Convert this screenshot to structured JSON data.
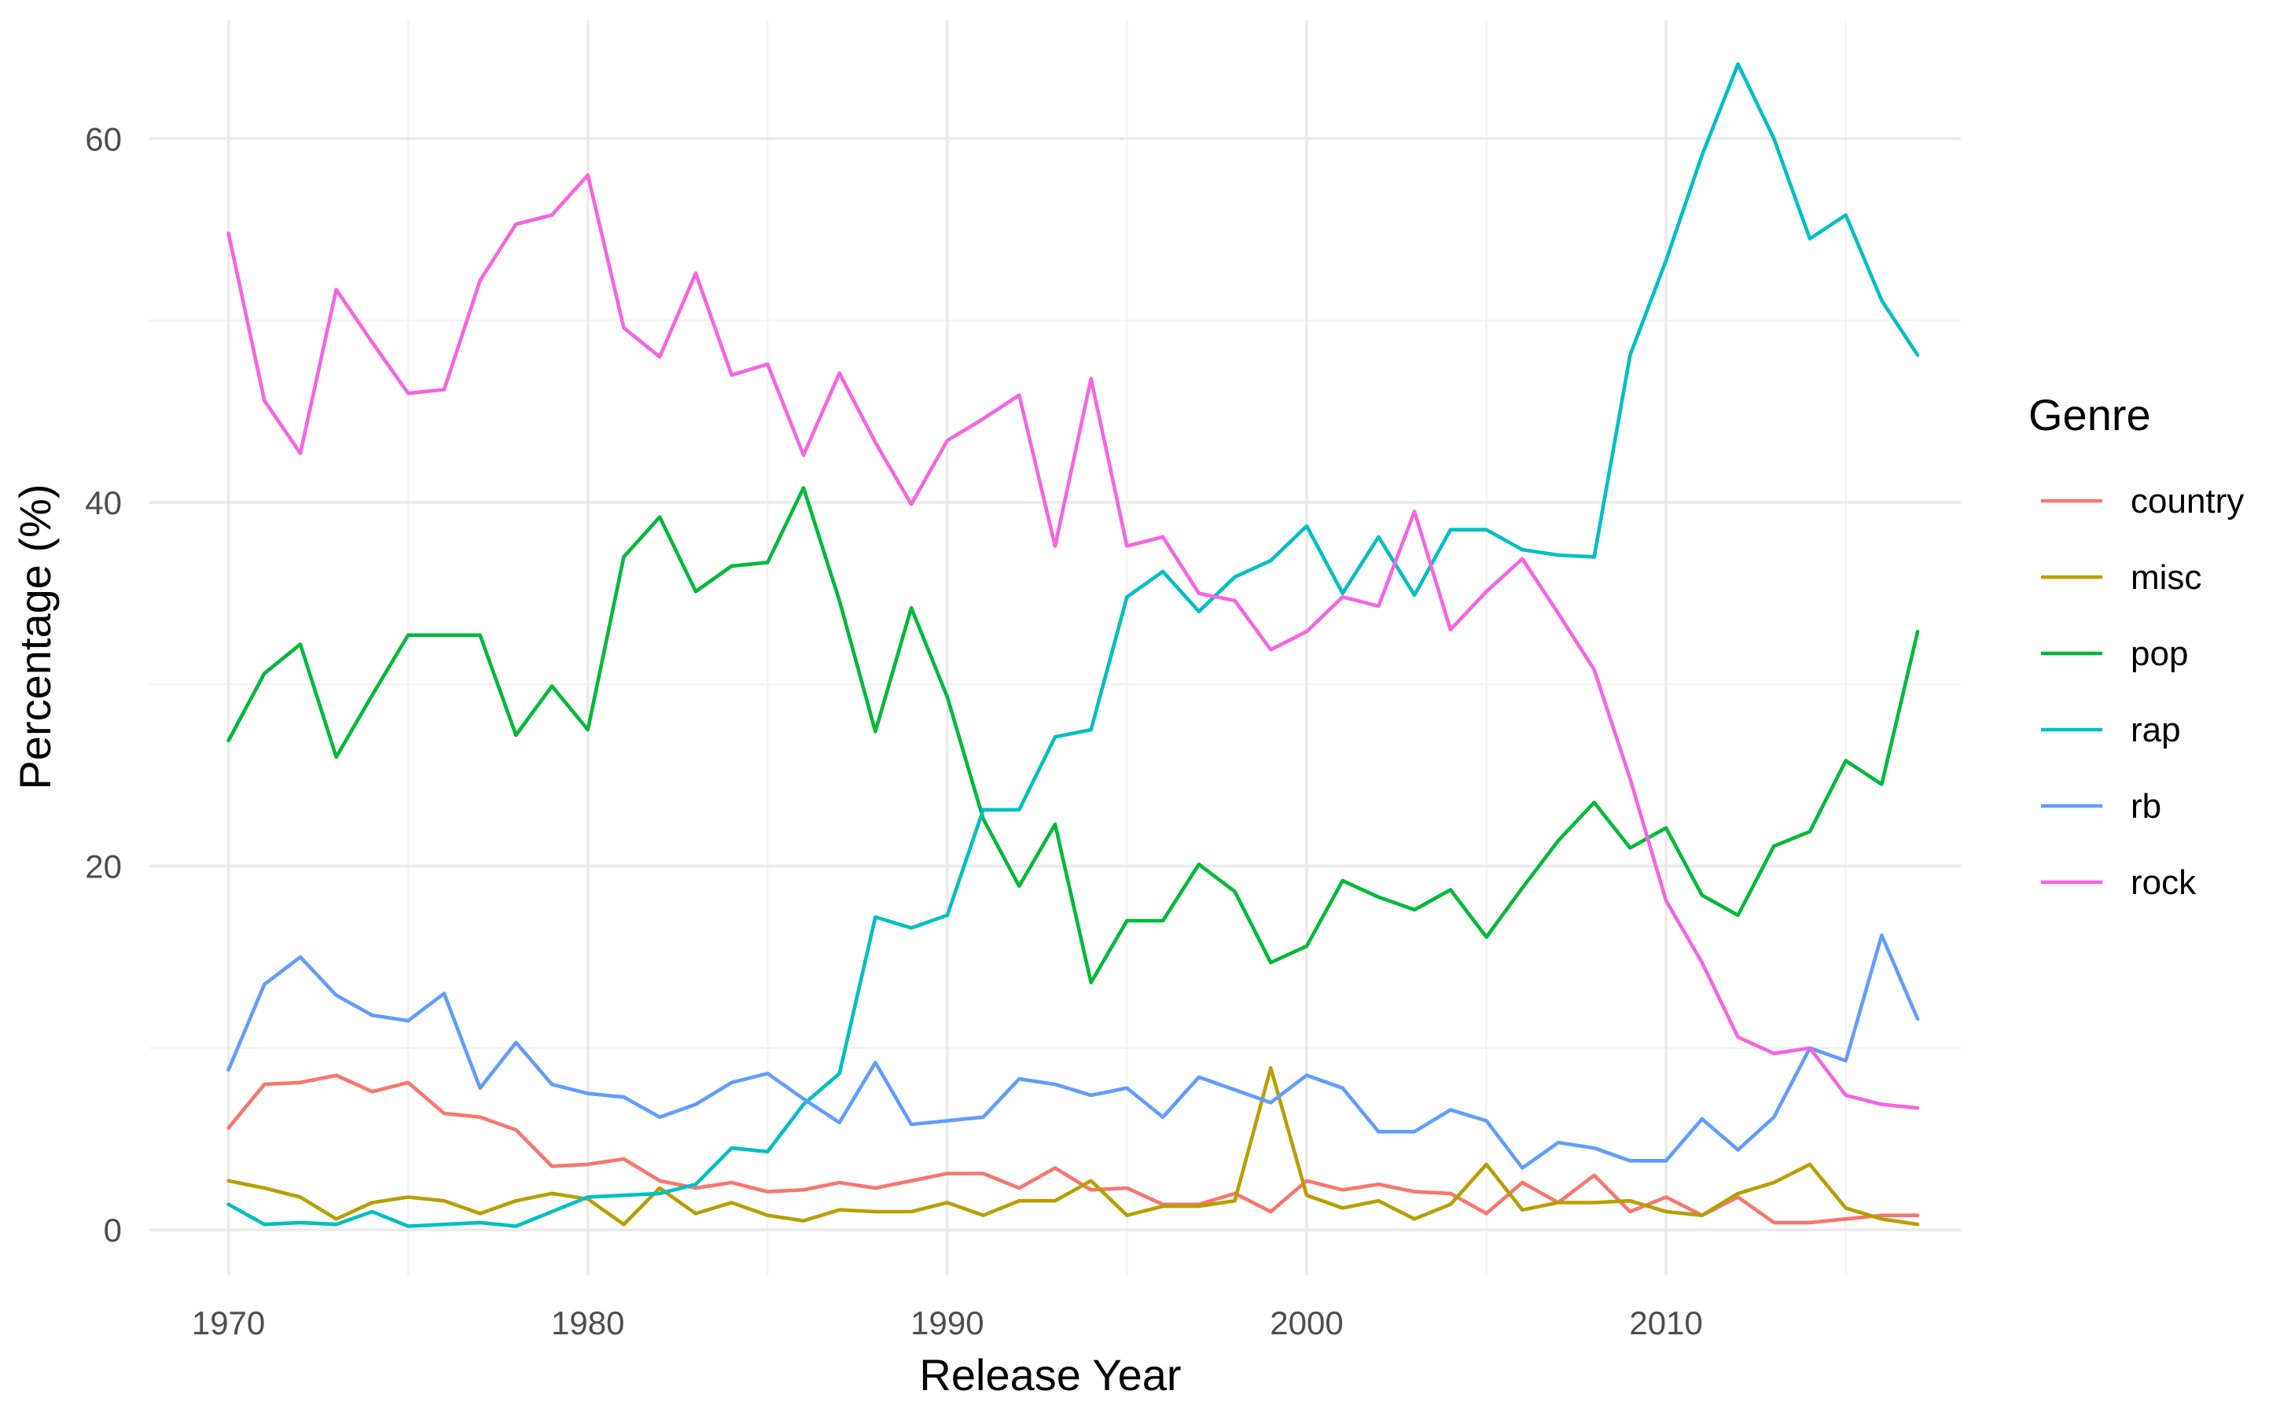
{
  "chart_data": {
    "type": "line",
    "title": "",
    "xlabel": "Release Year",
    "ylabel": "Percentage (%)",
    "xlim": [
      1967.8,
      2018.2
    ],
    "ylim": [
      -2.5,
      66.5
    ],
    "x_ticks": [
      1970,
      1980,
      1990,
      2000,
      2010
    ],
    "x_tick_labels": [
      "1970",
      "1980",
      "1990",
      "2000",
      "2010"
    ],
    "y_ticks": [
      0,
      20,
      40,
      60
    ],
    "y_tick_labels": [
      "0",
      "20",
      "40",
      "60"
    ],
    "x_minor_ticks": [
      1975,
      1985,
      1995,
      2005,
      2015
    ],
    "y_minor_ticks": [
      10,
      30,
      50
    ],
    "grid": true,
    "legend": {
      "title": "Genre",
      "position": "right"
    },
    "x": [
      1970,
      1971,
      1972,
      1973,
      1974,
      1975,
      1976,
      1977,
      1978,
      1979,
      1980,
      1981,
      1982,
      1983,
      1984,
      1985,
      1986,
      1987,
      1988,
      1989,
      1990,
      1991,
      1992,
      1993,
      1994,
      1995,
      1996,
      1997,
      1998,
      1999,
      2000,
      2001,
      2002,
      2003,
      2004,
      2005,
      2006,
      2007,
      2008,
      2009,
      2010,
      2011,
      2012,
      2013,
      2014,
      2015,
      2016,
      2017
    ],
    "series": [
      {
        "name": "country",
        "color": "#F8766D",
        "values": [
          5.6,
          8.0,
          8.1,
          8.5,
          7.6,
          8.1,
          6.4,
          6.2,
          5.5,
          3.5,
          3.6,
          3.9,
          2.7,
          2.3,
          2.6,
          2.1,
          2.2,
          2.6,
          2.3,
          2.7,
          3.1,
          3.1,
          2.3,
          3.4,
          2.2,
          2.3,
          1.4,
          1.4,
          2.0,
          1.0,
          2.7,
          2.2,
          2.5,
          2.1,
          2.0,
          0.9,
          2.6,
          1.5,
          3.0,
          1.0,
          1.8,
          0.8,
          1.8,
          0.4,
          0.4,
          0.6,
          0.8,
          0.8
        ]
      },
      {
        "name": "misc",
        "color": "#B79F00",
        "values": [
          2.7,
          2.3,
          1.8,
          0.6,
          1.5,
          1.8,
          1.6,
          0.9,
          1.6,
          2.0,
          1.7,
          0.3,
          2.3,
          0.9,
          1.5,
          0.8,
          0.5,
          1.1,
          1.0,
          1.0,
          1.5,
          0.8,
          1.6,
          1.6,
          2.7,
          0.8,
          1.3,
          1.3,
          1.6,
          8.9,
          1.9,
          1.2,
          1.6,
          0.6,
          1.4,
          3.6,
          1.1,
          1.5,
          1.5,
          1.6,
          1.0,
          0.8,
          2.0,
          2.6,
          3.6,
          1.2,
          0.6,
          0.3
        ]
      },
      {
        "name": "pop",
        "color": "#00BA38",
        "values": [
          26.9,
          30.6,
          32.2,
          26.0,
          29.4,
          32.7,
          32.7,
          32.7,
          27.2,
          29.9,
          27.5,
          37.0,
          39.2,
          35.1,
          36.5,
          36.7,
          40.8,
          34.6,
          27.4,
          34.2,
          29.3,
          22.6,
          18.9,
          22.3,
          13.6,
          17.0,
          17.0,
          20.1,
          18.6,
          14.7,
          15.6,
          19.2,
          18.3,
          17.6,
          18.7,
          16.1,
          18.8,
          21.4,
          23.5,
          21.0,
          22.1,
          18.4,
          17.3,
          21.1,
          21.9,
          25.8,
          24.5,
          32.9
        ]
      },
      {
        "name": "rap",
        "color": "#00BFC4",
        "values": [
          1.4,
          0.3,
          0.4,
          0.3,
          1.0,
          0.2,
          0.3,
          0.4,
          0.2,
          1.0,
          1.8,
          1.9,
          2.0,
          2.5,
          4.5,
          4.3,
          6.9,
          8.6,
          17.2,
          16.6,
          17.3,
          23.1,
          23.1,
          27.1,
          27.5,
          34.8,
          36.2,
          34.0,
          35.9,
          36.8,
          38.7,
          35.0,
          38.1,
          34.9,
          38.5,
          38.5,
          37.4,
          37.1,
          37.0,
          48.1,
          53.3,
          59.1,
          64.1,
          60.0,
          54.5,
          55.8,
          51.1,
          48.1
        ]
      },
      {
        "name": "rb",
        "color": "#619CFF",
        "values": [
          8.8,
          13.5,
          15.0,
          12.9,
          11.8,
          11.5,
          13.0,
          7.8,
          10.3,
          8.0,
          7.5,
          7.3,
          6.2,
          6.9,
          8.1,
          8.6,
          7.2,
          5.9,
          9.2,
          5.8,
          6.0,
          6.2,
          8.3,
          8.0,
          7.4,
          7.8,
          6.2,
          8.4,
          7.7,
          7.0,
          8.5,
          7.8,
          5.4,
          5.4,
          6.6,
          6.0,
          3.4,
          4.8,
          4.5,
          3.8,
          3.8,
          6.1,
          4.4,
          6.2,
          10.0,
          9.3,
          16.2,
          11.6
        ]
      },
      {
        "name": "rock",
        "color": "#F564E3",
        "values": [
          54.8,
          45.6,
          42.7,
          51.7,
          48.8,
          46.0,
          46.2,
          52.2,
          55.3,
          55.8,
          58.0,
          49.6,
          48.0,
          52.6,
          47.0,
          47.6,
          42.6,
          47.1,
          43.3,
          39.9,
          43.4,
          44.6,
          45.9,
          37.6,
          46.8,
          37.6,
          38.1,
          35.0,
          34.6,
          31.9,
          32.9,
          34.8,
          34.3,
          39.5,
          33.0,
          35.1,
          36.9,
          33.9,
          30.8,
          24.8,
          18.1,
          14.7,
          10.6,
          9.7,
          10.0,
          7.4,
          6.9,
          6.7
        ]
      }
    ]
  }
}
